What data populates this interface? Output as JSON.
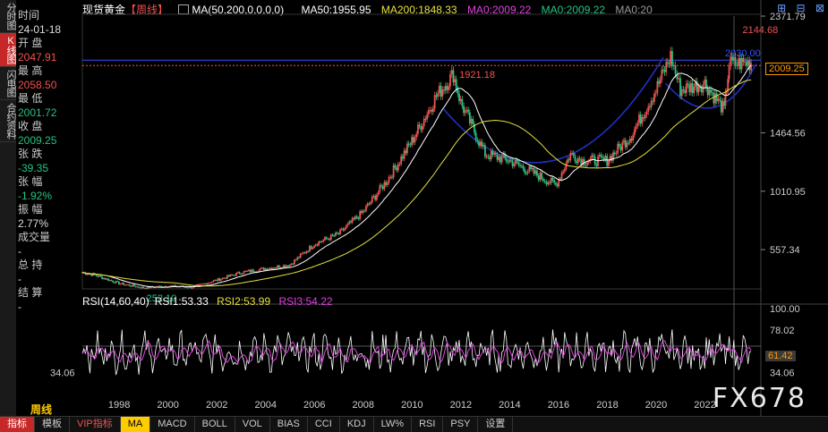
{
  "left_tabs": [
    "分时图",
    "K线图",
    "闪电图",
    "合约资料"
  ],
  "info_panel": {
    "time_label": "时间",
    "time": "24-01-18",
    "open_label": "开 盘",
    "open": "2047.91",
    "high_label": "最 高",
    "high": "2058.50",
    "low_label": "最 低",
    "low": "2001.72",
    "close_label": "收 盘",
    "close": "2009.25",
    "change_label": "张 跌",
    "change": "-39.35",
    "change_pct_label": "张 幅",
    "change_pct": "-1.92%",
    "amplitude_label": "振 幅",
    "amplitude": "2.77%",
    "volume_label": "成交量",
    "volume": "-",
    "oi_label": "总 持",
    "oi": "-",
    "settle_label": "结 算",
    "settle": "-"
  },
  "title_bar": {
    "name": "现货黄金",
    "period": "【周线】",
    "ma_label": "MA(50,200,0,0,0,0)",
    "ma50": "MA50:1955.95",
    "ma200": "MA200:1848.33",
    "ma0a": "MA0:2009.22",
    "ma0b": "MA0:2009.22",
    "ma0c": "MA0:20"
  },
  "top_icons": [
    "plus-square-icon",
    "minus-square-icon",
    "close-square-icon"
  ],
  "price_axis": [
    "2371.79",
    "1464.56",
    "1010.95",
    "557.34"
  ],
  "current_price": "2009.25",
  "annotations": {
    "peak_2011": "1921.18",
    "peak_2023": "2144.68",
    "low_1999": "252.10",
    "resistance": "2030.00"
  },
  "rsi": {
    "label": "RSI(14,60,40)",
    "rsi1": "RSI1:53.33",
    "rsi2": "RSI2:53.99",
    "rsi3": "RSI3:54.22",
    "axis": [
      "100.00",
      "78.02",
      "34.06"
    ],
    "current": "61.42",
    "left_value": "34.06"
  },
  "x_axis": [
    "1998",
    "2000",
    "2002",
    "2004",
    "2006",
    "2008",
    "2010",
    "2012",
    "2014",
    "2016",
    "2018",
    "2020",
    "2022"
  ],
  "period_label": "周线",
  "bottom_tabs": [
    "指标",
    "模板",
    "VIP指标",
    "MA",
    "MACD",
    "BOLL",
    "VOL",
    "BIAS",
    "CCI",
    "KDJ",
    "LW%",
    "RSI",
    "PSY",
    "设置"
  ],
  "watermark": "FX678",
  "colors": {
    "up": "#ef5350",
    "down": "#26c281",
    "ma50": "#ffffff",
    "ma200": "#e6e040",
    "rsi1": "#ffffff",
    "rsi2": "#e6e040",
    "rsi3": "#e040e0"
  },
  "chart_data": {
    "type": "line",
    "title": "现货黄金 周线",
    "x": [
      1996.5,
      1997,
      1998,
      1999,
      2000,
      2001,
      2002,
      2003,
      2004,
      2005,
      2006,
      2007,
      2008,
      2009,
      2010,
      2011,
      2011.7,
      2012,
      2013,
      2014,
      2015,
      2015.9,
      2016.5,
      2017,
      2018,
      2019,
      2020,
      2020.6,
      2021,
      2022,
      2022.8,
      2023,
      2023.9
    ],
    "series": [
      {
        "name": "现货黄金",
        "values": [
          380,
          360,
          295,
          260,
          275,
          265,
          320,
          380,
          410,
          440,
          600,
          680,
          850,
          1100,
          1400,
          1750,
          1921,
          1700,
          1300,
          1250,
          1150,
          1060,
          1300,
          1250,
          1250,
          1450,
          1800,
          2060,
          1800,
          1850,
          1640,
          2000,
          2009
        ]
      }
    ],
    "ylim": [
      252,
      2372
    ],
    "rsi_range": [
      20,
      100
    ]
  }
}
